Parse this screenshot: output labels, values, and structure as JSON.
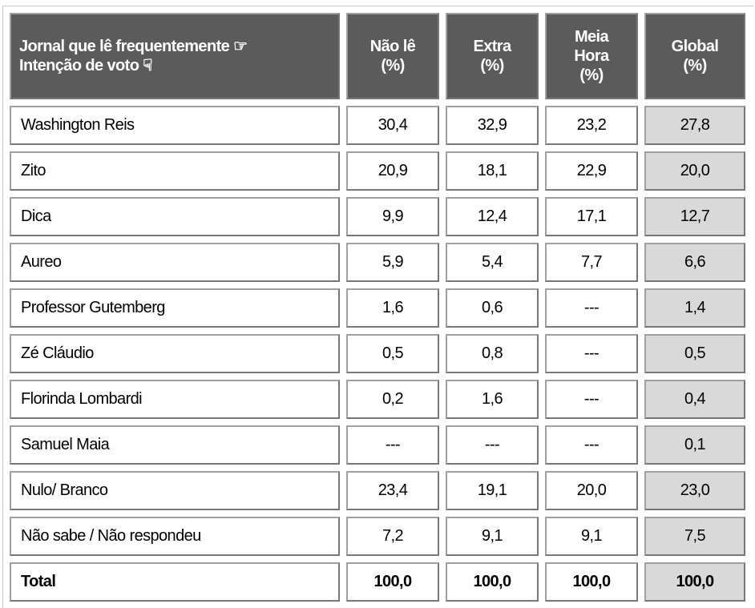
{
  "table": {
    "header": [
      [
        "Jornal que lê frequentemente ☞",
        "Intenção de voto ☟"
      ],
      [
        "Não lê",
        "(%)"
      ],
      [
        "Extra",
        "(%)"
      ],
      [
        "Meia",
        "Hora",
        "(%)"
      ],
      [
        "Global",
        "(%)"
      ]
    ],
    "rows": [
      [
        "Washington Reis",
        "30,4",
        "32,9",
        "23,2",
        "27,8"
      ],
      [
        "Zito",
        "20,9",
        "18,1",
        "22,9",
        "20,0"
      ],
      [
        "Dica",
        "9,9",
        "12,4",
        "17,1",
        "12,7"
      ],
      [
        "Aureo",
        "5,9",
        "5,4",
        "7,7",
        "6,6"
      ],
      [
        "Professor Gutemberg",
        "1,6",
        "0,6",
        "---",
        "1,4"
      ],
      [
        "Zé Cláudio",
        "0,5",
        "0,8",
        "---",
        "0,5"
      ],
      [
        "Florinda Lombardi",
        "0,2",
        "1,6",
        "---",
        "0,4"
      ],
      [
        "Samuel Maia",
        "---",
        "---",
        "---",
        "0,1"
      ],
      [
        "Nulo/ Branco",
        "23,4",
        "19,1",
        "20,0",
        "23,0"
      ],
      [
        "Não sabe / Não respondeu",
        "7,2",
        "9,1",
        "9,1",
        "7,5"
      ],
      [
        "Total",
        "100,0",
        "100,0",
        "100,0",
        "100,0"
      ]
    ]
  }
}
